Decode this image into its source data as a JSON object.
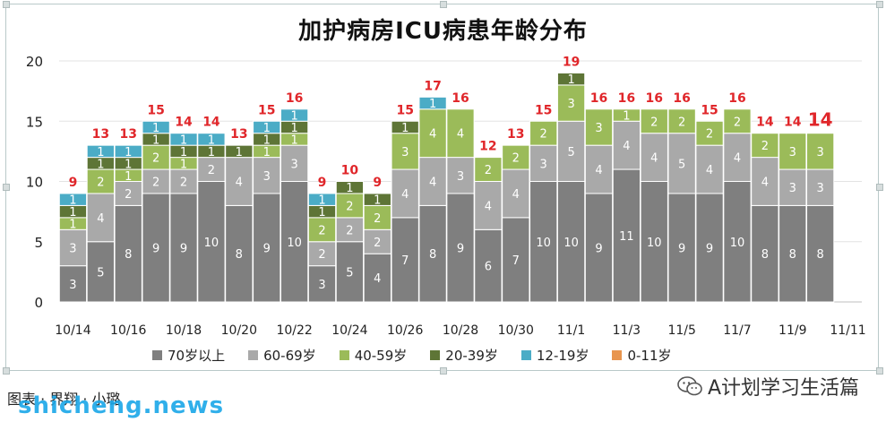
{
  "chart_data": {
    "type": "bar",
    "stacked": true,
    "title": "加护病房ICU病患年龄分布",
    "categories": [
      "10/14",
      "10/15",
      "10/16",
      "10/17",
      "10/18",
      "10/19",
      "10/20",
      "10/21",
      "10/22",
      "10/23",
      "10/24",
      "10/25",
      "10/26",
      "10/27",
      "10/28",
      "10/29",
      "10/30",
      "10/31",
      "11/1",
      "11/2",
      "11/3",
      "11/4",
      "11/5",
      "11/6",
      "11/7",
      "11/8",
      "11/9",
      "11/10",
      "11/11"
    ],
    "tick_labels": [
      "10/14",
      "10/16",
      "10/18",
      "10/20",
      "10/22",
      "10/24",
      "10/26",
      "10/28",
      "10/30",
      "11/1",
      "11/3",
      "11/5",
      "11/7",
      "11/9",
      "11/11"
    ],
    "yticks": [
      "0",
      "5",
      "10",
      "15",
      "20"
    ],
    "ylim": [
      0,
      20
    ],
    "grid": true,
    "legend_position": "bottom",
    "series": [
      {
        "name": "70岁以上",
        "color": "#7f7f7f",
        "values": [
          3,
          5,
          8,
          9,
          9,
          10,
          8,
          9,
          10,
          3,
          5,
          4,
          7,
          8,
          9,
          6,
          7,
          10,
          10,
          9,
          11,
          10,
          9,
          9,
          10,
          8,
          8,
          8,
          null
        ]
      },
      {
        "name": "60-69岁",
        "color": "#a9a9a9",
        "values": [
          3,
          4,
          2,
          2,
          2,
          2,
          4,
          3,
          3,
          2,
          2,
          2,
          4,
          4,
          3,
          4,
          4,
          3,
          5,
          4,
          4,
          4,
          5,
          4,
          4,
          4,
          3,
          3,
          null
        ]
      },
      {
        "name": "40-59岁",
        "color": "#9bbb59",
        "values": [
          1,
          2,
          1,
          2,
          1,
          0,
          0,
          1,
          1,
          2,
          2,
          2,
          3,
          4,
          4,
          2,
          2,
          2,
          3,
          3,
          1,
          2,
          2,
          2,
          2,
          2,
          3,
          3,
          null
        ]
      },
      {
        "name": "20-39岁",
        "color": "#5e7536",
        "values": [
          1,
          1,
          1,
          1,
          1,
          1,
          1,
          1,
          1,
          1,
          1,
          1,
          1,
          0,
          0,
          0,
          0,
          0,
          1,
          0,
          0,
          0,
          0,
          0,
          0,
          0,
          0,
          0,
          null
        ]
      },
      {
        "name": "12-19岁",
        "color": "#4bacc6",
        "values": [
          1,
          1,
          1,
          1,
          1,
          1,
          0,
          1,
          1,
          1,
          0,
          0,
          0,
          1,
          0,
          0,
          0,
          0,
          0,
          0,
          0,
          0,
          0,
          0,
          0,
          0,
          0,
          0,
          null
        ]
      },
      {
        "name": "0-11岁",
        "color": "#e8954e",
        "values": [
          0,
          0,
          0,
          0,
          0,
          0,
          0,
          0,
          0,
          0,
          0,
          0,
          0,
          0,
          0,
          0,
          0,
          0,
          0,
          0,
          0,
          0,
          0,
          0,
          0,
          0,
          0,
          0,
          null
        ]
      }
    ],
    "totals": [
      "9",
      "13",
      "13",
      "15",
      "14",
      "14",
      "13",
      "15",
      "16",
      "9",
      "10",
      "9",
      "15",
      "17",
      "16",
      "12",
      "13",
      "15",
      "19",
      "16",
      "16",
      "16",
      "16",
      "15",
      "16",
      "14",
      "14",
      "14",
      ""
    ]
  },
  "footer": {
    "source": "图表 · 界翔 · 小璐",
    "watermark": "shicheng.news",
    "wechat": "A计划学习生活篇"
  }
}
